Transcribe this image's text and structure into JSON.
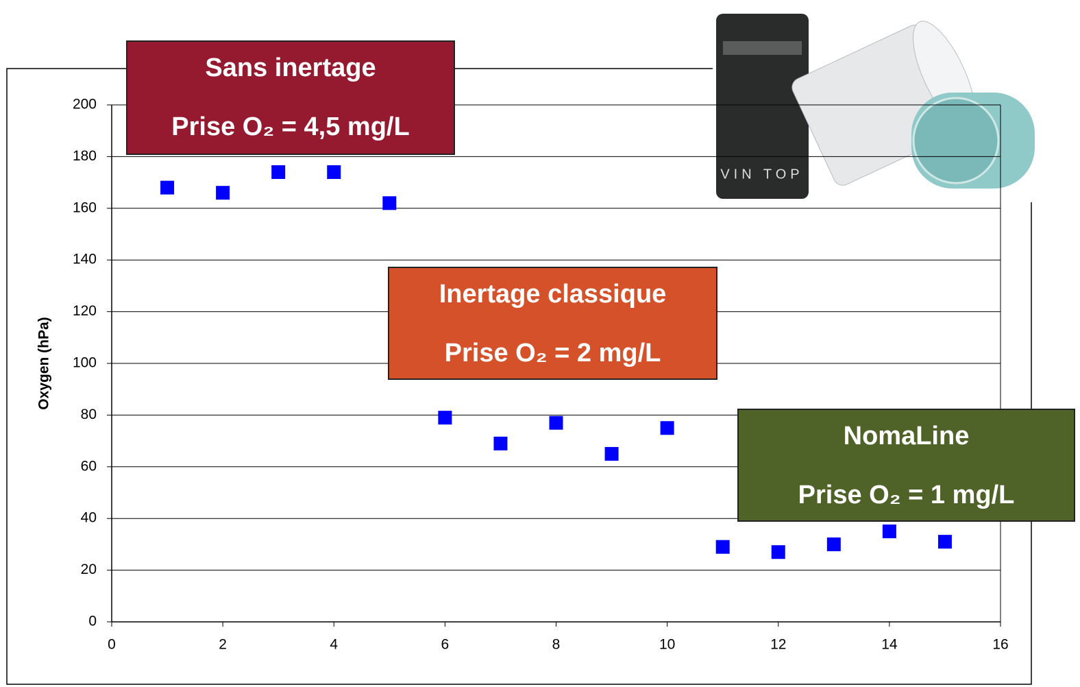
{
  "chart_data": {
    "type": "scatter",
    "y_label": "Oxygen (hPa)",
    "x": [
      1,
      2,
      3,
      4,
      5,
      6,
      7,
      8,
      9,
      10,
      11,
      12,
      13,
      14,
      15
    ],
    "series": [
      {
        "color": "#0000ff",
        "values": [
          168,
          166,
          174,
          174,
          162,
          79,
          69,
          77,
          65,
          75,
          29,
          27,
          30,
          35,
          31
        ]
      }
    ],
    "xlim": [
      0,
      16
    ],
    "xticks": [
      0,
      2,
      4,
      6,
      8,
      10,
      12,
      14,
      16
    ],
    "ylim": [
      0,
      200
    ],
    "yticks": [
      0,
      20,
      40,
      60,
      80,
      100,
      120,
      140,
      160,
      180,
      200
    ],
    "grid": true,
    "annotations": [
      {
        "lines": [
          "Sans inertage",
          "Prise O₂ = 4,5 mg/L"
        ],
        "color": "#951a2f"
      },
      {
        "lines": [
          "Inertage classique",
          "Prise O₂ = 2 mg/L"
        ],
        "color": "#d4512a"
      },
      {
        "lines": [
          "NomaLine",
          "Prise O₂ = 1 mg/L"
        ],
        "color": "#4f6228"
      }
    ],
    "photo_text": "VIN TOP"
  }
}
